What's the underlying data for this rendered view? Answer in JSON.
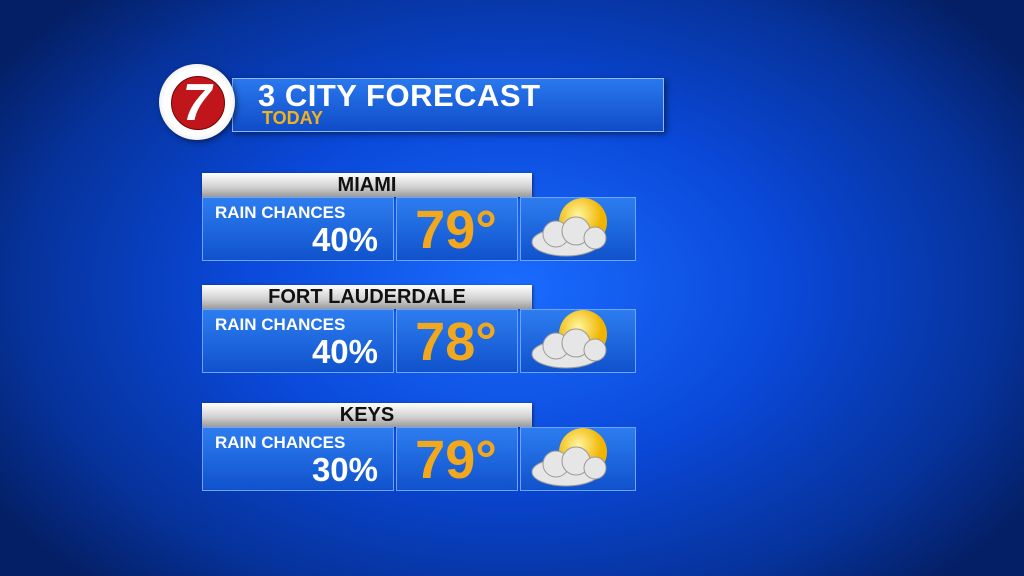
{
  "header": {
    "logo": "7",
    "title": "3 CITY FORECAST",
    "subtitle": "TODAY"
  },
  "cities": [
    {
      "name": "MIAMI",
      "rain_label": "RAIN CHANCES",
      "rain": "40%",
      "temp": "79°"
    },
    {
      "name": "FORT LAUDERDALE",
      "rain_label": "RAIN CHANCES",
      "rain": "40%",
      "temp": "78°"
    },
    {
      "name": "KEYS",
      "rain_label": "RAIN CHANCES",
      "rain": "30%",
      "temp": "79°"
    }
  ]
}
